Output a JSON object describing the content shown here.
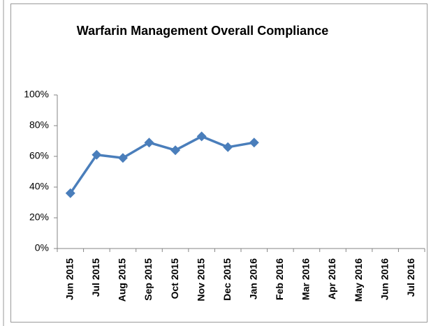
{
  "chart_data": {
    "type": "line",
    "title": "Warfarin Management Overall Compliance",
    "categories": [
      "Jun 2015",
      "Jul 2015",
      "Aug 2015",
      "Sep 2015",
      "Oct 2015",
      "Nov 2015",
      "Dec 2015",
      "Jan 2016",
      "Feb 2016",
      "Mar 2016",
      "Apr 2016",
      "May 2016",
      "Jun 2016",
      "Jul 2016"
    ],
    "series": [
      {
        "name": "Overall Compliance",
        "color": "#4a7ebb",
        "values": [
          36,
          61,
          59,
          69,
          64,
          73,
          66,
          69,
          null,
          null,
          null,
          null,
          null,
          null
        ]
      }
    ],
    "ylim": [
      0,
      100
    ],
    "yticks": [
      {
        "value": 0,
        "label": "0%"
      },
      {
        "value": 20,
        "label": "20%"
      },
      {
        "value": 40,
        "label": "40%"
      },
      {
        "value": 60,
        "label": "60%"
      },
      {
        "value": 80,
        "label": "80%"
      },
      {
        "value": 100,
        "label": "100%"
      }
    ],
    "grid": false,
    "legend": false
  }
}
